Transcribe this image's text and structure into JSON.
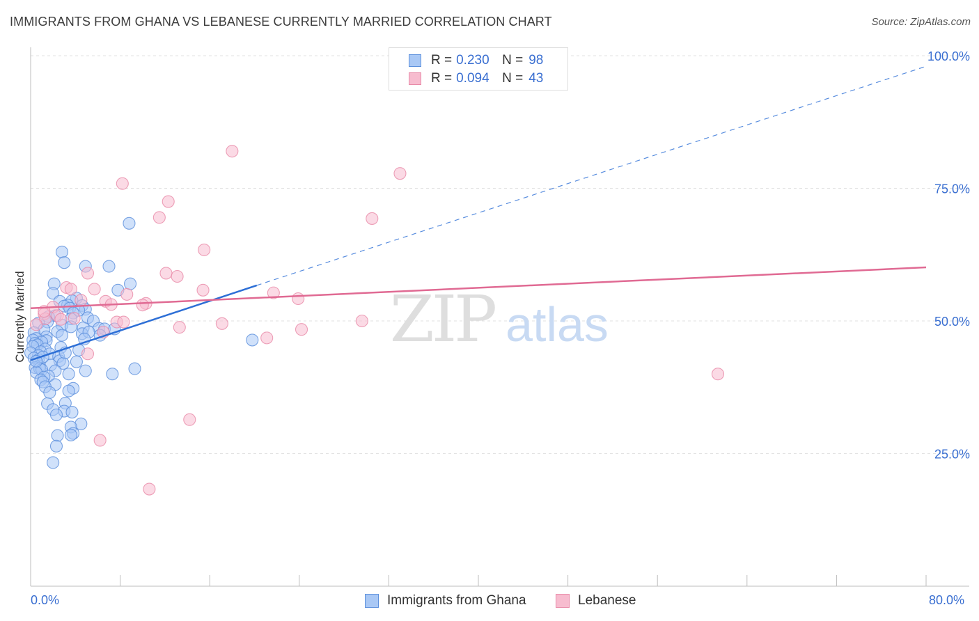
{
  "title": "IMMIGRANTS FROM GHANA VS LEBANESE CURRENTLY MARRIED CORRELATION CHART",
  "source": "Source: ZipAtlas.com",
  "watermark": {
    "zip": "ZIP",
    "atlas": "atlas"
  },
  "legend": {
    "r_label": "R =",
    "n_label": "N =",
    "series": [
      {
        "r": "0.230",
        "n": "98"
      },
      {
        "r": "0.094",
        "n": "43"
      }
    ]
  },
  "bottom_legend": [
    "Immigrants from Ghana",
    "Lebanese"
  ],
  "colors": {
    "ghana_fill": "#a9c8f5",
    "ghana_stroke": "#5b8fdc",
    "ghana_line": "#2d6fd6",
    "lebanese_fill": "#f7bccf",
    "lebanese_stroke": "#e88aa8",
    "lebanese_line": "#e06a93",
    "axis_label": "#3a6fd1"
  },
  "chart_data": {
    "type": "scatter",
    "title": "IMMIGRANTS FROM GHANA VS LEBANESE CURRENTLY MARRIED CORRELATION CHART",
    "xlabel": "",
    "ylabel": "Currently Married",
    "xlim": [
      0,
      80
    ],
    "ylim": [
      0,
      100
    ],
    "x_tick_labels": [
      "0.0%",
      "80.0%"
    ],
    "y_ticks": [
      25,
      50,
      75,
      100
    ],
    "y_tick_labels": [
      "25.0%",
      "50.0%",
      "75.0%",
      "100.0%"
    ],
    "grid": true,
    "series": [
      {
        "name": "Immigrants from Ghana",
        "r": 0.23,
        "n": 98,
        "trend": {
          "x0": 0,
          "y0": 42.6,
          "x1": 20.2,
          "y1": 56.7,
          "dashed_to_x": 80,
          "dashed_to_y": 98.0
        },
        "points": [
          [
            2.8,
            63.0
          ],
          [
            3.0,
            61.0
          ],
          [
            4.9,
            60.3
          ],
          [
            8.8,
            68.4
          ],
          [
            8.9,
            57.0
          ],
          [
            2.1,
            57.0
          ],
          [
            2.0,
            55.2
          ],
          [
            4.1,
            54.3
          ],
          [
            3.7,
            53.8
          ],
          [
            2.6,
            53.7
          ],
          [
            3.3,
            53.0
          ],
          [
            4.6,
            52.9
          ],
          [
            3.0,
            52.8
          ],
          [
            4.9,
            52.2
          ],
          [
            7.0,
            60.3
          ],
          [
            7.8,
            55.8
          ],
          [
            3.5,
            52.4
          ],
          [
            4.3,
            52.0
          ],
          [
            3.8,
            51.5
          ],
          [
            2.2,
            51.0
          ],
          [
            1.6,
            50.8
          ],
          [
            5.1,
            50.6
          ],
          [
            3.6,
            50.4
          ],
          [
            5.6,
            50.0
          ],
          [
            1.5,
            49.8
          ],
          [
            0.7,
            49.6
          ],
          [
            2.8,
            49.2
          ],
          [
            3.6,
            48.9
          ],
          [
            4.7,
            48.7
          ],
          [
            6.1,
            48.6
          ],
          [
            1.2,
            48.4
          ],
          [
            2.4,
            48.0
          ],
          [
            0.3,
            47.8
          ],
          [
            4.6,
            47.6
          ],
          [
            2.8,
            47.3
          ],
          [
            1.4,
            47.0
          ],
          [
            0.5,
            46.7
          ],
          [
            0.2,
            46.4
          ],
          [
            1.4,
            46.3
          ],
          [
            1.0,
            46.0
          ],
          [
            0.4,
            45.8
          ],
          [
            0.6,
            45.5
          ],
          [
            0.2,
            45.2
          ],
          [
            2.7,
            45.0
          ],
          [
            1.3,
            44.7
          ],
          [
            4.3,
            44.5
          ],
          [
            0.9,
            44.2
          ],
          [
            0.0,
            44.0
          ],
          [
            1.7,
            43.8
          ],
          [
            0.7,
            43.5
          ],
          [
            2.5,
            43.3
          ],
          [
            0.3,
            43.0
          ],
          [
            0.7,
            42.7
          ],
          [
            2.6,
            42.5
          ],
          [
            4.1,
            42.3
          ],
          [
            2.9,
            42.0
          ],
          [
            1.8,
            41.7
          ],
          [
            0.8,
            41.5
          ],
          [
            0.4,
            41.2
          ],
          [
            0.8,
            41.0
          ],
          [
            1.0,
            40.8
          ],
          [
            2.2,
            40.6
          ],
          [
            0.5,
            40.3
          ],
          [
            4.9,
            40.6
          ],
          [
            9.3,
            41.0
          ],
          [
            7.3,
            40.0
          ],
          [
            3.4,
            40.0
          ],
          [
            1.6,
            39.6
          ],
          [
            1.2,
            39.4
          ],
          [
            0.9,
            38.9
          ],
          [
            1.1,
            38.5
          ],
          [
            2.2,
            38.0
          ],
          [
            1.3,
            37.6
          ],
          [
            3.8,
            37.3
          ],
          [
            3.4,
            36.8
          ],
          [
            1.7,
            36.5
          ],
          [
            1.5,
            34.4
          ],
          [
            3.1,
            34.5
          ],
          [
            2.0,
            33.3
          ],
          [
            3.0,
            33.0
          ],
          [
            3.7,
            32.8
          ],
          [
            2.3,
            32.3
          ],
          [
            4.5,
            30.6
          ],
          [
            3.6,
            30.0
          ],
          [
            3.8,
            28.8
          ],
          [
            3.6,
            28.5
          ],
          [
            2.4,
            28.4
          ],
          [
            2.3,
            26.4
          ],
          [
            2.0,
            23.3
          ],
          [
            19.8,
            46.4
          ],
          [
            6.6,
            48.5
          ],
          [
            7.5,
            48.5
          ],
          [
            5.2,
            47.9
          ],
          [
            6.2,
            47.3
          ],
          [
            4.8,
            46.6
          ],
          [
            3.1,
            44.0
          ],
          [
            1.1,
            43.2
          ],
          [
            0.5,
            42.4
          ]
        ]
      },
      {
        "name": "Lebanese",
        "r": 0.094,
        "n": 43,
        "trend": {
          "x0": 0,
          "y0": 52.4,
          "x1": 80,
          "y1": 60.1
        },
        "points": [
          [
            18.0,
            82.0
          ],
          [
            33.0,
            77.8
          ],
          [
            8.2,
            75.9
          ],
          [
            12.3,
            72.5
          ],
          [
            11.5,
            69.5
          ],
          [
            30.5,
            69.3
          ],
          [
            15.5,
            63.4
          ],
          [
            12.1,
            59.0
          ],
          [
            13.1,
            58.4
          ],
          [
            5.1,
            59.0
          ],
          [
            3.2,
            56.3
          ],
          [
            3.6,
            56.0
          ],
          [
            5.7,
            56.0
          ],
          [
            15.4,
            55.8
          ],
          [
            21.7,
            55.3
          ],
          [
            8.6,
            55.0
          ],
          [
            23.9,
            54.2
          ],
          [
            4.5,
            53.9
          ],
          [
            6.7,
            53.7
          ],
          [
            7.2,
            53.1
          ],
          [
            10.3,
            53.3
          ],
          [
            10.0,
            53.0
          ],
          [
            2.0,
            52.6
          ],
          [
            1.2,
            51.3
          ],
          [
            2.4,
            51.0
          ],
          [
            3.9,
            50.5
          ],
          [
            2.7,
            50.3
          ],
          [
            1.3,
            50.4
          ],
          [
            7.7,
            49.8
          ],
          [
            8.3,
            49.8
          ],
          [
            17.1,
            49.5
          ],
          [
            29.6,
            50.0
          ],
          [
            0.5,
            49.3
          ],
          [
            13.3,
            48.8
          ],
          [
            24.2,
            48.4
          ],
          [
            21.1,
            46.8
          ],
          [
            6.5,
            47.9
          ],
          [
            5.1,
            43.8
          ],
          [
            61.4,
            40.0
          ],
          [
            14.2,
            31.4
          ],
          [
            6.2,
            27.5
          ],
          [
            10.6,
            18.3
          ],
          [
            1.2,
            51.8
          ]
        ]
      }
    ]
  }
}
